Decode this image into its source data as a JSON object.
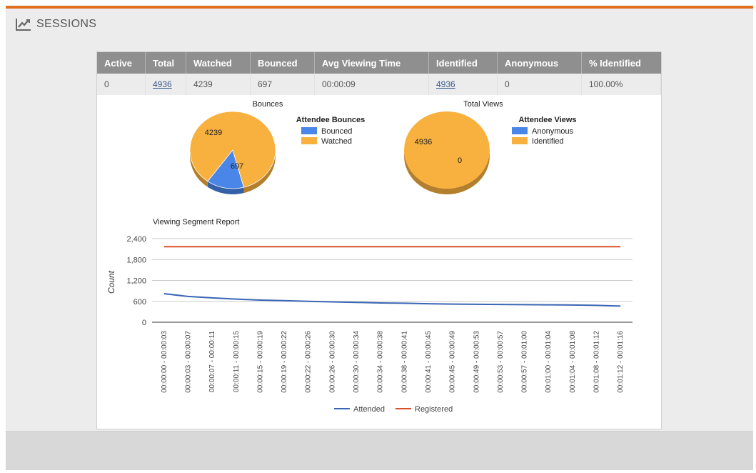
{
  "header": {
    "title": "SESSIONS",
    "icon": "trend-chart-icon"
  },
  "stats_table": {
    "columns": [
      "Active",
      "Total",
      "Watched",
      "Bounced",
      "Avg Viewing Time",
      "Identified",
      "Anonymous",
      "% Identified"
    ],
    "row": {
      "active": "0",
      "total": "4936",
      "watched": "4239",
      "bounced": "697",
      "avg_viewing_time": "00:00:09",
      "identified": "4936",
      "anonymous": "0",
      "pct_identified": "100.00%"
    }
  },
  "chart_data": [
    {
      "type": "pie",
      "title": "Bounces",
      "legend_title": "Attendee Bounces",
      "labels": [
        "Bounced",
        "Watched"
      ],
      "values": [
        697,
        4239
      ],
      "colors": [
        "#4a86e8",
        "#f8b13f"
      ]
    },
    {
      "type": "pie",
      "title": "Total Views",
      "legend_title": "Attendee Views",
      "labels": [
        "Anonymous",
        "Identified"
      ],
      "values": [
        0,
        4936
      ],
      "colors": [
        "#4a86e8",
        "#f8b13f"
      ]
    },
    {
      "type": "line",
      "title": "Viewing Segment Report",
      "ylabel": "Count",
      "ylim": [
        0,
        2400
      ],
      "yticks": [
        0,
        600,
        1200,
        1800,
        2400
      ],
      "ytick_labels": [
        "0",
        "600",
        "1,200",
        "1,800",
        "2,400"
      ],
      "grid": true,
      "legend_position": "bottom",
      "categories": [
        "00:00:00 - 00:00:03",
        "00:00:03 - 00:00:07",
        "00:00:07 - 00:00:11",
        "00:00:11 - 00:00:15",
        "00:00:15 - 00:00:19",
        "00:00:19 - 00:00:22",
        "00:00:22 - 00:00:26",
        "00:00:26 - 00:00:30",
        "00:00:30 - 00:00:34",
        "00:00:34 - 00:00:38",
        "00:00:38 - 00:00:41",
        "00:00:41 - 00:00:45",
        "00:00:45 - 00:00:49",
        "00:00:49 - 00:00:53",
        "00:00:53 - 00:00:57",
        "00:00:57 - 00:01:00",
        "00:01:00 - 00:01:04",
        "00:01:04 - 00:01:08",
        "00:01:08 - 00:01:12",
        "00:01:12 - 00:01:16"
      ],
      "series": [
        {
          "name": "Attended",
          "color": "#3a65b5",
          "values": [
            820,
            740,
            700,
            665,
            635,
            620,
            600,
            585,
            570,
            555,
            545,
            530,
            520,
            515,
            510,
            505,
            500,
            495,
            485,
            465
          ]
        },
        {
          "name": "Registered",
          "color": "#d9512c",
          "values": [
            2170,
            2170,
            2170,
            2170,
            2170,
            2170,
            2170,
            2170,
            2170,
            2170,
            2170,
            2170,
            2170,
            2170,
            2170,
            2170,
            2170,
            2170,
            2170,
            2170
          ]
        }
      ]
    }
  ]
}
